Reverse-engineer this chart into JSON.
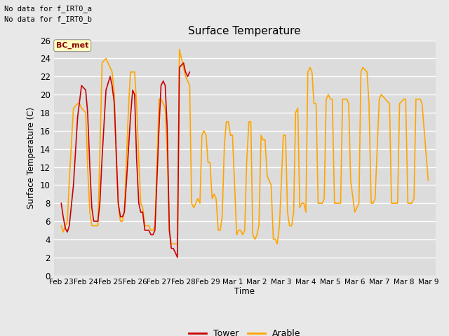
{
  "title": "Surface Temperature",
  "ylabel": "Surface Temperature (C)",
  "xlabel": "Time",
  "no_data_text_1": "No data for f_IRT0_a",
  "no_data_text_2": "No data for f_IRT0_b",
  "bc_met_label": "BC_met",
  "bc_met_box_color": "#FFFFC0",
  "bc_met_text_color": "#8B0000",
  "ylim": [
    0,
    26
  ],
  "yticks": [
    0,
    2,
    4,
    6,
    8,
    10,
    12,
    14,
    16,
    18,
    20,
    22,
    24,
    26
  ],
  "background_color": "#E8E8E8",
  "plot_bg_color": "#DCDCDC",
  "grid_color": "#FFFFFF",
  "tower_color": "#CC0000",
  "arable_color": "#FFA500",
  "legend_tower": "Tower",
  "legend_arable": "Arable",
  "x_tick_labels": [
    "Feb 23",
    "Feb 24",
    "Feb 25",
    "Feb 26",
    "Feb 27",
    "Feb 28",
    "Feb 29",
    "Mar 1",
    "Mar 2",
    "Mar 3",
    "Mar 4",
    "Mar 5",
    "Mar 6",
    "Mar 7",
    "Mar 8",
    "Mar 9"
  ],
  "tower_data": [
    [
      0.0,
      8.0
    ],
    [
      0.08,
      6.5
    ],
    [
      0.17,
      5.2
    ],
    [
      0.25,
      4.8
    ],
    [
      0.33,
      5.5
    ],
    [
      0.5,
      10.0
    ],
    [
      0.67,
      17.5
    ],
    [
      0.83,
      21.0
    ],
    [
      1.0,
      20.5
    ],
    [
      1.08,
      18.0
    ],
    [
      1.17,
      12.0
    ],
    [
      1.25,
      7.5
    ],
    [
      1.33,
      6.0
    ],
    [
      1.42,
      6.0
    ],
    [
      1.5,
      6.0
    ],
    [
      1.58,
      8.0
    ],
    [
      1.67,
      13.0
    ],
    [
      1.83,
      20.5
    ],
    [
      2.0,
      22.0
    ],
    [
      2.08,
      21.0
    ],
    [
      2.17,
      19.0
    ],
    [
      2.25,
      13.5
    ],
    [
      2.33,
      8.0
    ],
    [
      2.42,
      6.5
    ],
    [
      2.5,
      6.5
    ],
    [
      2.58,
      7.0
    ],
    [
      2.67,
      10.5
    ],
    [
      2.75,
      14.0
    ],
    [
      2.83,
      17.5
    ],
    [
      2.92,
      20.5
    ],
    [
      3.0,
      20.0
    ],
    [
      3.08,
      13.0
    ],
    [
      3.17,
      8.0
    ],
    [
      3.25,
      7.0
    ],
    [
      3.33,
      7.0
    ],
    [
      3.42,
      5.0
    ],
    [
      3.5,
      5.0
    ],
    [
      3.58,
      5.0
    ],
    [
      3.67,
      4.5
    ],
    [
      3.75,
      4.5
    ],
    [
      3.83,
      5.0
    ],
    [
      4.0,
      16.5
    ],
    [
      4.08,
      21.0
    ],
    [
      4.17,
      21.5
    ],
    [
      4.25,
      21.0
    ],
    [
      4.33,
      16.5
    ],
    [
      4.42,
      5.0
    ],
    [
      4.5,
      3.0
    ],
    [
      4.58,
      3.0
    ],
    [
      4.67,
      2.5
    ],
    [
      4.75,
      2.0
    ],
    [
      4.83,
      23.0
    ],
    [
      5.0,
      23.5
    ],
    [
      5.08,
      22.5
    ],
    [
      5.17,
      22.0
    ],
    [
      5.25,
      22.5
    ]
  ],
  "arable_data": [
    [
      0.0,
      5.5
    ],
    [
      0.08,
      4.8
    ],
    [
      0.17,
      5.5
    ],
    [
      0.25,
      6.0
    ],
    [
      0.33,
      10.5
    ],
    [
      0.5,
      18.5
    ],
    [
      0.67,
      19.0
    ],
    [
      0.75,
      19.0
    ],
    [
      0.83,
      18.5
    ],
    [
      1.0,
      18.0
    ],
    [
      1.08,
      12.0
    ],
    [
      1.17,
      7.0
    ],
    [
      1.25,
      5.5
    ],
    [
      1.33,
      5.5
    ],
    [
      1.42,
      5.5
    ],
    [
      1.5,
      5.5
    ],
    [
      1.58,
      13.5
    ],
    [
      1.67,
      23.5
    ],
    [
      1.83,
      24.0
    ],
    [
      2.0,
      23.0
    ],
    [
      2.08,
      22.5
    ],
    [
      2.17,
      20.0
    ],
    [
      2.25,
      13.0
    ],
    [
      2.33,
      8.0
    ],
    [
      2.42,
      6.0
    ],
    [
      2.5,
      6.0
    ],
    [
      2.58,
      7.0
    ],
    [
      2.67,
      13.0
    ],
    [
      2.75,
      18.5
    ],
    [
      2.83,
      22.5
    ],
    [
      3.0,
      22.5
    ],
    [
      3.08,
      19.0
    ],
    [
      3.17,
      13.0
    ],
    [
      3.25,
      8.0
    ],
    [
      3.33,
      7.5
    ],
    [
      3.42,
      5.5
    ],
    [
      3.5,
      5.5
    ],
    [
      3.58,
      5.5
    ],
    [
      3.67,
      5.0
    ],
    [
      3.75,
      5.0
    ],
    [
      3.83,
      5.5
    ],
    [
      4.0,
      19.5
    ],
    [
      4.08,
      19.5
    ],
    [
      4.17,
      19.0
    ],
    [
      4.25,
      18.5
    ],
    [
      4.33,
      13.5
    ],
    [
      4.42,
      5.0
    ],
    [
      4.5,
      3.5
    ],
    [
      4.58,
      3.5
    ],
    [
      4.67,
      3.5
    ],
    [
      4.75,
      3.5
    ],
    [
      4.83,
      25.0
    ],
    [
      5.0,
      23.0
    ],
    [
      5.08,
      22.0
    ],
    [
      5.17,
      21.5
    ],
    [
      5.25,
      21.0
    ],
    [
      5.33,
      8.0
    ],
    [
      5.42,
      7.5
    ],
    [
      5.5,
      8.0
    ],
    [
      5.58,
      8.5
    ],
    [
      5.67,
      8.0
    ],
    [
      5.75,
      15.5
    ],
    [
      5.83,
      16.0
    ],
    [
      5.92,
      15.5
    ],
    [
      6.0,
      12.5
    ],
    [
      6.08,
      12.5
    ],
    [
      6.17,
      8.5
    ],
    [
      6.25,
      9.0
    ],
    [
      6.33,
      8.5
    ],
    [
      6.42,
      5.0
    ],
    [
      6.5,
      5.0
    ],
    [
      6.58,
      6.5
    ],
    [
      6.67,
      14.5
    ],
    [
      6.75,
      17.0
    ],
    [
      6.83,
      17.0
    ],
    [
      6.92,
      15.5
    ],
    [
      7.0,
      15.5
    ],
    [
      7.08,
      10.5
    ],
    [
      7.17,
      4.5
    ],
    [
      7.25,
      5.0
    ],
    [
      7.33,
      5.0
    ],
    [
      7.42,
      4.5
    ],
    [
      7.5,
      5.0
    ],
    [
      7.58,
      12.5
    ],
    [
      7.67,
      17.0
    ],
    [
      7.75,
      17.0
    ],
    [
      7.83,
      4.5
    ],
    [
      7.92,
      4.0
    ],
    [
      8.0,
      4.5
    ],
    [
      8.08,
      5.5
    ],
    [
      8.17,
      15.5
    ],
    [
      8.25,
      15.0
    ],
    [
      8.33,
      15.0
    ],
    [
      8.42,
      11.0
    ],
    [
      8.5,
      10.5
    ],
    [
      8.58,
      10.0
    ],
    [
      8.67,
      4.0
    ],
    [
      8.75,
      4.0
    ],
    [
      8.83,
      3.5
    ],
    [
      8.92,
      5.5
    ],
    [
      9.0,
      10.5
    ],
    [
      9.08,
      15.5
    ],
    [
      9.17,
      15.5
    ],
    [
      9.25,
      7.0
    ],
    [
      9.33,
      5.5
    ],
    [
      9.42,
      5.5
    ],
    [
      9.5,
      7.0
    ],
    [
      9.58,
      18.0
    ],
    [
      9.67,
      18.5
    ],
    [
      9.75,
      7.5
    ],
    [
      9.83,
      8.0
    ],
    [
      9.92,
      8.0
    ],
    [
      10.0,
      7.0
    ],
    [
      10.08,
      22.5
    ],
    [
      10.17,
      23.0
    ],
    [
      10.25,
      22.5
    ],
    [
      10.33,
      19.0
    ],
    [
      10.42,
      19.0
    ],
    [
      10.5,
      8.0
    ],
    [
      10.58,
      8.0
    ],
    [
      10.67,
      8.0
    ],
    [
      10.75,
      8.5
    ],
    [
      10.83,
      19.5
    ],
    [
      10.92,
      20.0
    ],
    [
      11.0,
      19.5
    ],
    [
      11.08,
      19.5
    ],
    [
      11.17,
      8.0
    ],
    [
      11.25,
      8.0
    ],
    [
      11.33,
      8.0
    ],
    [
      11.42,
      8.0
    ],
    [
      11.5,
      19.5
    ],
    [
      11.58,
      19.5
    ],
    [
      11.67,
      19.5
    ],
    [
      11.75,
      19.0
    ],
    [
      11.83,
      10.5
    ],
    [
      12.0,
      7.0
    ],
    [
      12.08,
      7.5
    ],
    [
      12.17,
      8.0
    ],
    [
      12.25,
      22.5
    ],
    [
      12.33,
      23.0
    ],
    [
      12.5,
      22.5
    ],
    [
      12.58,
      19.0
    ],
    [
      12.67,
      8.0
    ],
    [
      12.75,
      8.0
    ],
    [
      12.83,
      8.5
    ],
    [
      13.0,
      19.5
    ],
    [
      13.08,
      20.0
    ],
    [
      13.25,
      19.5
    ],
    [
      13.42,
      19.0
    ],
    [
      13.5,
      8.0
    ],
    [
      13.58,
      8.0
    ],
    [
      13.67,
      8.0
    ],
    [
      13.75,
      8.0
    ],
    [
      13.83,
      19.0
    ],
    [
      14.0,
      19.5
    ],
    [
      14.08,
      19.5
    ],
    [
      14.17,
      8.0
    ],
    [
      14.33,
      8.0
    ],
    [
      14.42,
      8.5
    ],
    [
      14.5,
      19.5
    ],
    [
      14.67,
      19.5
    ],
    [
      14.75,
      19.0
    ],
    [
      15.0,
      10.5
    ]
  ]
}
